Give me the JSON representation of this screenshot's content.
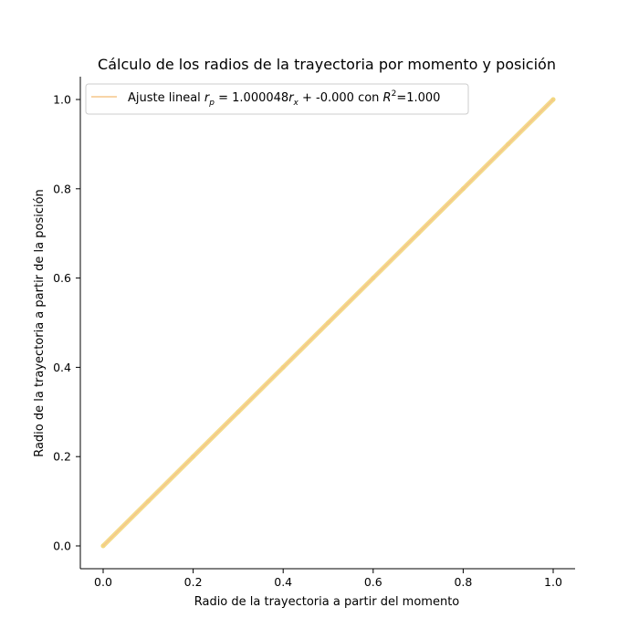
{
  "chart_data": {
    "type": "scatter",
    "title": "Cálculo de los radios de la trayectoria por momento y posición",
    "xlabel": "Radio de la trayectoria a partir del momento",
    "ylabel": "Radio de la trayectoria a partir de la posición",
    "xlim": [
      -0.05,
      1.05
    ],
    "ylim": [
      -0.05,
      1.05
    ],
    "xticks": [
      "0.0",
      "0.2",
      "0.4",
      "0.6",
      "0.8",
      "1.0"
    ],
    "yticks": [
      "0.0",
      "0.2",
      "0.4",
      "0.6",
      "0.8",
      "1.0"
    ],
    "grid": false,
    "legend_position": "top-left",
    "series": [
      {
        "role": "data",
        "x": [
          0.0,
          0.1,
          0.2,
          0.3,
          0.4,
          0.5,
          0.6,
          0.7,
          0.8,
          0.9,
          1.0
        ],
        "y": [
          0.0,
          0.1,
          0.2,
          0.3,
          0.4,
          0.5,
          0.6,
          0.7,
          0.8,
          0.9,
          1.0
        ],
        "color": "#f2d77e"
      },
      {
        "role": "fit",
        "legend_parts": {
          "prefix": "Ajuste lineal ",
          "var1": "r",
          "sub1": "p",
          "mid": " = 1.000048",
          "var2": "r",
          "sub2": "x",
          "mid2": " + -0.000 con ",
          "var3": "R",
          "sup3": "2",
          "suffix": "=1.000"
        },
        "slope": 1.000048,
        "intercept": -0.0,
        "x": [
          0.0,
          1.0
        ],
        "color": "#f5c58a"
      }
    ]
  }
}
